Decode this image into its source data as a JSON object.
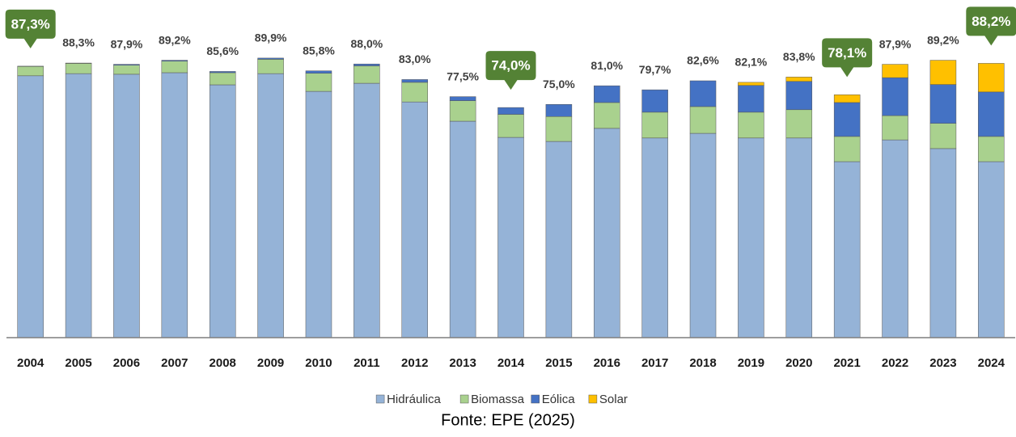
{
  "chart_data": {
    "type": "stacked_bar",
    "categories": [
      "2004",
      "2005",
      "2006",
      "2007",
      "2008",
      "2009",
      "2010",
      "2011",
      "2012",
      "2013",
      "2014",
      "2015",
      "2016",
      "2017",
      "2018",
      "2019",
      "2020",
      "2021",
      "2022",
      "2023",
      "2024"
    ],
    "series": [
      {
        "name": "Hidráulica",
        "color": "#95b3d7",
        "values": [
          84.2,
          84.9,
          84.7,
          85.2,
          81.3,
          84.9,
          79.2,
          81.8,
          75.8,
          69.6,
          64.4,
          63.1,
          67.3,
          64.2,
          65.7,
          64.2,
          64.2,
          56.6,
          63.6,
          60.8,
          56.6
        ]
      },
      {
        "name": "Biomassa",
        "color": "#a9d18e",
        "values": [
          3.0,
          3.3,
          2.9,
          3.7,
          3.9,
          4.6,
          5.8,
          5.6,
          6.3,
          6.6,
          7.4,
          8.0,
          8.3,
          8.3,
          8.6,
          8.3,
          9.1,
          8.1,
          7.8,
          8.1,
          8.1
        ]
      },
      {
        "name": "Eólica",
        "color": "#4472c4",
        "values": [
          0.1,
          0.1,
          0.3,
          0.3,
          0.4,
          0.4,
          0.8,
          0.6,
          0.9,
          1.3,
          2.2,
          3.9,
          5.4,
          7.2,
          8.3,
          8.6,
          9.1,
          10.9,
          12.2,
          12.5,
          14.3
        ]
      },
      {
        "name": "Solar",
        "color": "#ffc000",
        "values": [
          0,
          0,
          0,
          0,
          0,
          0,
          0,
          0,
          0,
          0,
          0,
          0,
          0,
          0,
          0,
          1.0,
          1.4,
          2.5,
          4.3,
          7.8,
          9.2
        ]
      }
    ],
    "totals": {
      "values": [
        87.3,
        88.3,
        87.9,
        89.2,
        85.6,
        89.9,
        85.8,
        88.0,
        83.0,
        77.5,
        74.0,
        75.0,
        81.0,
        79.7,
        82.6,
        82.1,
        83.8,
        78.1,
        87.9,
        89.2,
        88.2
      ],
      "value_labels": [
        "87,3%",
        "88,3%",
        "87,9%",
        "89,2%",
        "85,6%",
        "89,9%",
        "85,8%",
        "88,0%",
        "83,0%",
        "77,5%",
        "74,0%",
        "75,0%",
        "81,0%",
        "79,7%",
        "82,6%",
        "82,1%",
        "83,8%",
        "78,1%",
        "87,9%",
        "89,2%",
        "88,2%"
      ]
    },
    "highlight": [
      "2004",
      "2014",
      "2021",
      "2024"
    ],
    "highlight_color": "#548235",
    "ylim": [
      0,
      100
    ],
    "legend": "bottom",
    "source": "Fonte: EPE (2025)"
  }
}
